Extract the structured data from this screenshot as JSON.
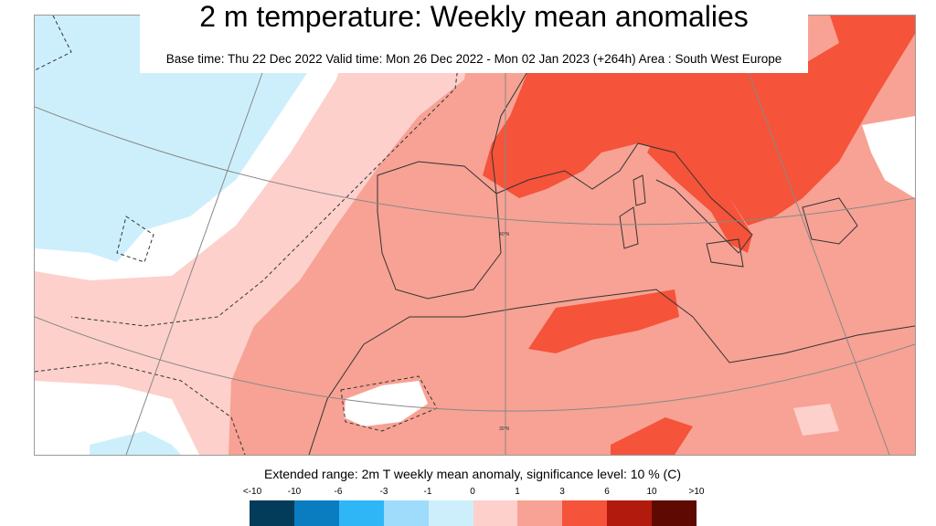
{
  "title": "2 m temperature: Weekly mean anomalies",
  "subtitle": "Base time: Thu 22 Dec 2022 Valid time: Mon 26 Dec 2022 - Mon 02 Jan 2023 (+264h) Area : South West Europe",
  "map": {
    "lat_labels": [
      "40°N",
      "30°N"
    ],
    "region": "South West Europe"
  },
  "legend": {
    "caption": "Extended range: 2m T weekly mean anomaly, significance level: 10 % (C)",
    "ticks": [
      "<-10",
      "-10",
      "-6",
      "-3",
      "-1",
      "0",
      "1",
      "3",
      "6",
      "10",
      ">10"
    ],
    "colors": [
      "#033b5a",
      "#0a7cc0",
      "#2fb6f6",
      "#9fdcfb",
      "#cdeffc",
      "#ffffff",
      "#fdd0cb",
      "#f7a294",
      "#f5533a",
      "#b31a0e",
      "#5e0a03"
    ]
  }
}
